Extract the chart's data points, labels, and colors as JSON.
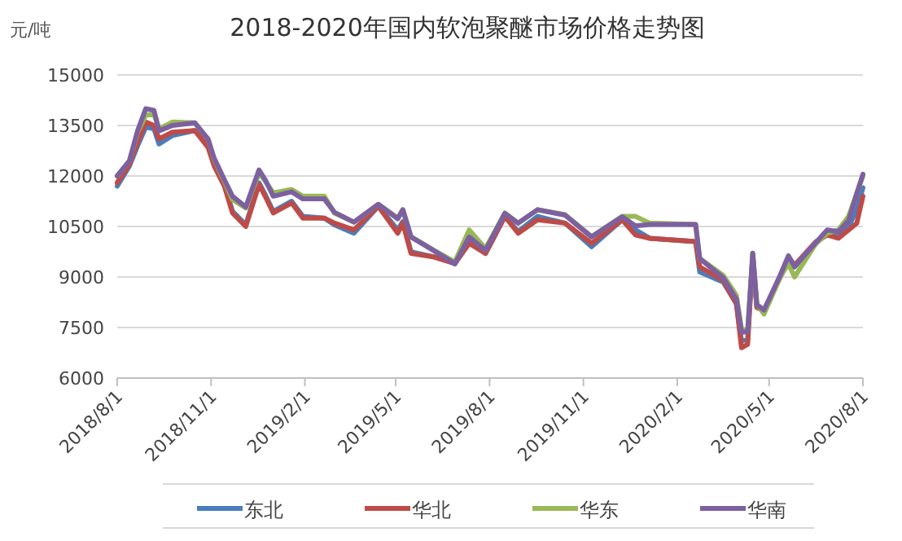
{
  "chart_data": {
    "type": "line",
    "title": "2018-2020年国内软泡聚醚市场价格走势图",
    "ylabel": "元/吨",
    "x": [
      "2018-08-01",
      "2018-08-13",
      "2018-08-21",
      "2018-08-29",
      "2018-09-06",
      "2018-09-11",
      "2018-09-24",
      "2018-10-16",
      "2018-10-29",
      "2018-11-04",
      "2018-11-14",
      "2018-11-22",
      "2018-12-05",
      "2018-12-18",
      "2018-12-24",
      "2019-01-01",
      "2019-01-19",
      "2019-01-30",
      "2019-02-20",
      "2019-03-02",
      "2019-03-21",
      "2019-04-14",
      "2019-05-03",
      "2019-05-08",
      "2019-05-16",
      "2019-06-07",
      "2019-06-28",
      "2019-07-12",
      "2019-07-28",
      "2019-08-16",
      "2019-08-29",
      "2019-09-17",
      "2019-10-14",
      "2019-11-09",
      "2019-12-09",
      "2019-12-22",
      "2020-01-05",
      "2020-02-19",
      "2020-02-23",
      "2020-03-17",
      "2020-03-30",
      "2020-04-04",
      "2020-04-10",
      "2020-04-15",
      "2020-04-19",
      "2020-04-26",
      "2020-05-12",
      "2020-05-20",
      "2020-05-26",
      "2020-06-16",
      "2020-06-27",
      "2020-07-08",
      "2020-07-18",
      "2020-07-26",
      "2020-08-01"
    ],
    "series": [
      {
        "name": "东北",
        "color": "#4a7ebb",
        "values": [
          11700,
          12300,
          12900,
          13450,
          13400,
          12950,
          13200,
          13350,
          12900,
          12350,
          11750,
          10950,
          10550,
          11800,
          11450,
          10950,
          11250,
          10800,
          10750,
          10550,
          10300,
          11100,
          10400,
          10650,
          9750,
          9600,
          9400,
          10050,
          9700,
          10800,
          10350,
          10800,
          10600,
          9900,
          10700,
          10400,
          10150,
          10050,
          9150,
          8850,
          8200,
          7100,
          7150,
          9650,
          8100,
          8000,
          9000,
          9600,
          9300,
          10000,
          10300,
          10300,
          10500,
          11000,
          11650
        ]
      },
      {
        "name": "华北",
        "color": "#be4b48",
        "values": [
          11800,
          12350,
          13000,
          13600,
          13500,
          13100,
          13300,
          13350,
          12850,
          12300,
          11700,
          10900,
          10500,
          11750,
          11400,
          10900,
          11200,
          10750,
          10750,
          10600,
          10400,
          11100,
          10300,
          10600,
          9700,
          9600,
          9400,
          10000,
          9700,
          10800,
          10300,
          10700,
          10600,
          10000,
          10700,
          10250,
          10150,
          10050,
          9300,
          8900,
          8200,
          6900,
          7000,
          9600,
          8100,
          8000,
          9000,
          9600,
          9350,
          10050,
          10250,
          10150,
          10400,
          10600,
          11400
        ]
      },
      {
        "name": "华东",
        "color": "#98b954",
        "values": [
          12000,
          12450,
          13300,
          13800,
          13850,
          13400,
          13600,
          13580,
          13100,
          12500,
          11850,
          11300,
          11050,
          12100,
          11850,
          11500,
          11600,
          11400,
          11400,
          10900,
          10630,
          11160,
          10750,
          11000,
          10200,
          9800,
          9450,
          10400,
          9850,
          10900,
          10600,
          11000,
          10850,
          10200,
          10800,
          10800,
          10600,
          10560,
          9550,
          9050,
          8450,
          7450,
          7400,
          9710,
          8200,
          7900,
          9000,
          9400,
          9000,
          10000,
          10300,
          10400,
          10800,
          11500,
          12000
        ]
      },
      {
        "name": "华南",
        "color": "#7d60a0",
        "values": [
          12000,
          12450,
          13350,
          14000,
          13950,
          13340,
          13500,
          13580,
          13100,
          12530,
          11890,
          11400,
          11080,
          12180,
          11890,
          11400,
          11530,
          11320,
          11320,
          10920,
          10630,
          11160,
          10730,
          11000,
          10190,
          9790,
          9390,
          10190,
          9790,
          10890,
          10600,
          11000,
          10840,
          10190,
          10790,
          10520,
          10560,
          10560,
          9550,
          8980,
          8340,
          7370,
          7370,
          9710,
          8180,
          8020,
          9060,
          9630,
          9310,
          10030,
          10400,
          10350,
          10680,
          11480,
          12050
        ]
      }
    ],
    "xlim": [
      "2018-08-01",
      "2020-08-01"
    ],
    "xticks": [
      {
        "value": "2018-08-01",
        "label": "2018/8/1"
      },
      {
        "value": "2018-11-01",
        "label": "2018/11/1"
      },
      {
        "value": "2019-02-01",
        "label": "2019/2/1"
      },
      {
        "value": "2019-05-01",
        "label": "2019/5/1"
      },
      {
        "value": "2019-08-01",
        "label": "2019/8/1"
      },
      {
        "value": "2019-11-01",
        "label": "2019/11/1"
      },
      {
        "value": "2020-02-01",
        "label": "2020/2/1"
      },
      {
        "value": "2020-05-01",
        "label": "2020/5/1"
      },
      {
        "value": "2020-08-01",
        "label": "2020/8/1"
      }
    ],
    "ylim": [
      6000,
      15000
    ],
    "yticks": [
      6000,
      7500,
      9000,
      10500,
      12000,
      13500,
      15000
    ],
    "grid": "y",
    "legend": "bottom",
    "line_style": "solid",
    "marker": "none"
  }
}
